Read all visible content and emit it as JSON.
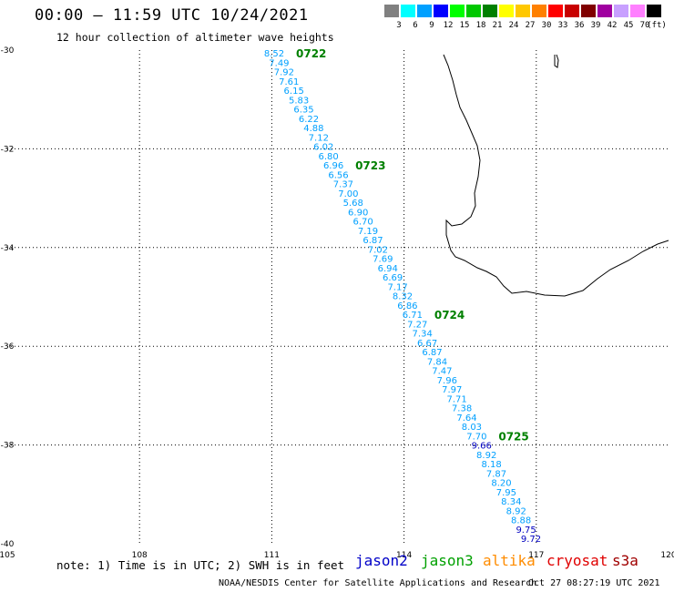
{
  "header": {
    "title": "00:00 – 11:59 UTC 10/24/2021",
    "subtitle": "12 hour collection of altimeter wave heights"
  },
  "legend": {
    "unit": "(ft)",
    "levels": [
      {
        "label": "3",
        "color": "#808080"
      },
      {
        "label": "6",
        "color": "#00ffff"
      },
      {
        "label": "9",
        "color": "#00a0ff"
      },
      {
        "label": "12",
        "color": "#0000ff"
      },
      {
        "label": "15",
        "color": "#00ff00"
      },
      {
        "label": "18",
        "color": "#00c800"
      },
      {
        "label": "21",
        "color": "#008000"
      },
      {
        "label": "24",
        "color": "#ffff00"
      },
      {
        "label": "27",
        "color": "#ffc800"
      },
      {
        "label": "30",
        "color": "#ff8000"
      },
      {
        "label": "33",
        "color": "#ff0000"
      },
      {
        "label": "36",
        "color": "#c80000"
      },
      {
        "label": "39",
        "color": "#800000"
      },
      {
        "label": "42",
        "color": "#a000a0"
      },
      {
        "label": "45",
        "color": "#c8a0ff"
      },
      {
        "label": "70",
        "color": "#ff80ff"
      },
      {
        "label": "",
        "color": "#000000"
      }
    ]
  },
  "map": {
    "lat_range": [
      -40,
      -30
    ],
    "lon_range": [
      105,
      120
    ],
    "lat_labels": [
      "-30",
      "-32",
      "-34",
      "-36",
      "-38",
      "-40"
    ],
    "lon_labels": [
      "105",
      "108",
      "111",
      "114",
      "117",
      "120"
    ],
    "grid": "dotted"
  },
  "track": {
    "label_color": "#00a0ff",
    "time_color": "#008000",
    "times": [
      {
        "label": "0722",
        "after": 0
      },
      {
        "label": "0723",
        "after": 12
      },
      {
        "label": "0724",
        "after": 28
      },
      {
        "label": "0725",
        "after": 41
      }
    ],
    "values": [
      "8.52",
      "7.49",
      "7.92",
      "7.61",
      "6.15",
      "5.83",
      "6.35",
      "6.22",
      "4.88",
      "7.12",
      "6.02",
      "6.80",
      "6.96",
      "6.56",
      "7.37",
      "7.00",
      "5.68",
      "6.90",
      "6.70",
      "7.19",
      "6.87",
      "7.02",
      "7.69",
      "6.94",
      "6.69",
      "7.17",
      "8.32",
      "6.86",
      "6.71",
      "7.27",
      "7.34",
      "6.67",
      "6.87",
      "7.84",
      "7.47",
      "7.96",
      "7.97",
      "7.71",
      "7.38",
      "7.64",
      "8.03",
      "7.70",
      "9.66",
      "8.92",
      "8.18",
      "7.87",
      "8.20",
      "7.95",
      "8.34",
      "8.92",
      "8.88",
      "9.75",
      "9.72"
    ],
    "dark_values": [
      "9.66",
      "9.75",
      "9.72"
    ],
    "dark_color": "#0000c0"
  },
  "footer": {
    "note": "note: 1) Time is in UTC; 2) SWH is in feet",
    "credit": "NOAA/NESDIS Center for Satellite Applications and Research",
    "stamp": "Oct 27 08:27:19 UTC 2021",
    "satellites": [
      {
        "name": "jason2",
        "color": "#0000c8"
      },
      {
        "name": "jason3",
        "color": "#00a000"
      },
      {
        "name": "altika",
        "color": "#ff8c00"
      },
      {
        "name": "cryosat",
        "color": "#e00000"
      },
      {
        "name": "s3a",
        "color": "#a00000"
      }
    ]
  }
}
